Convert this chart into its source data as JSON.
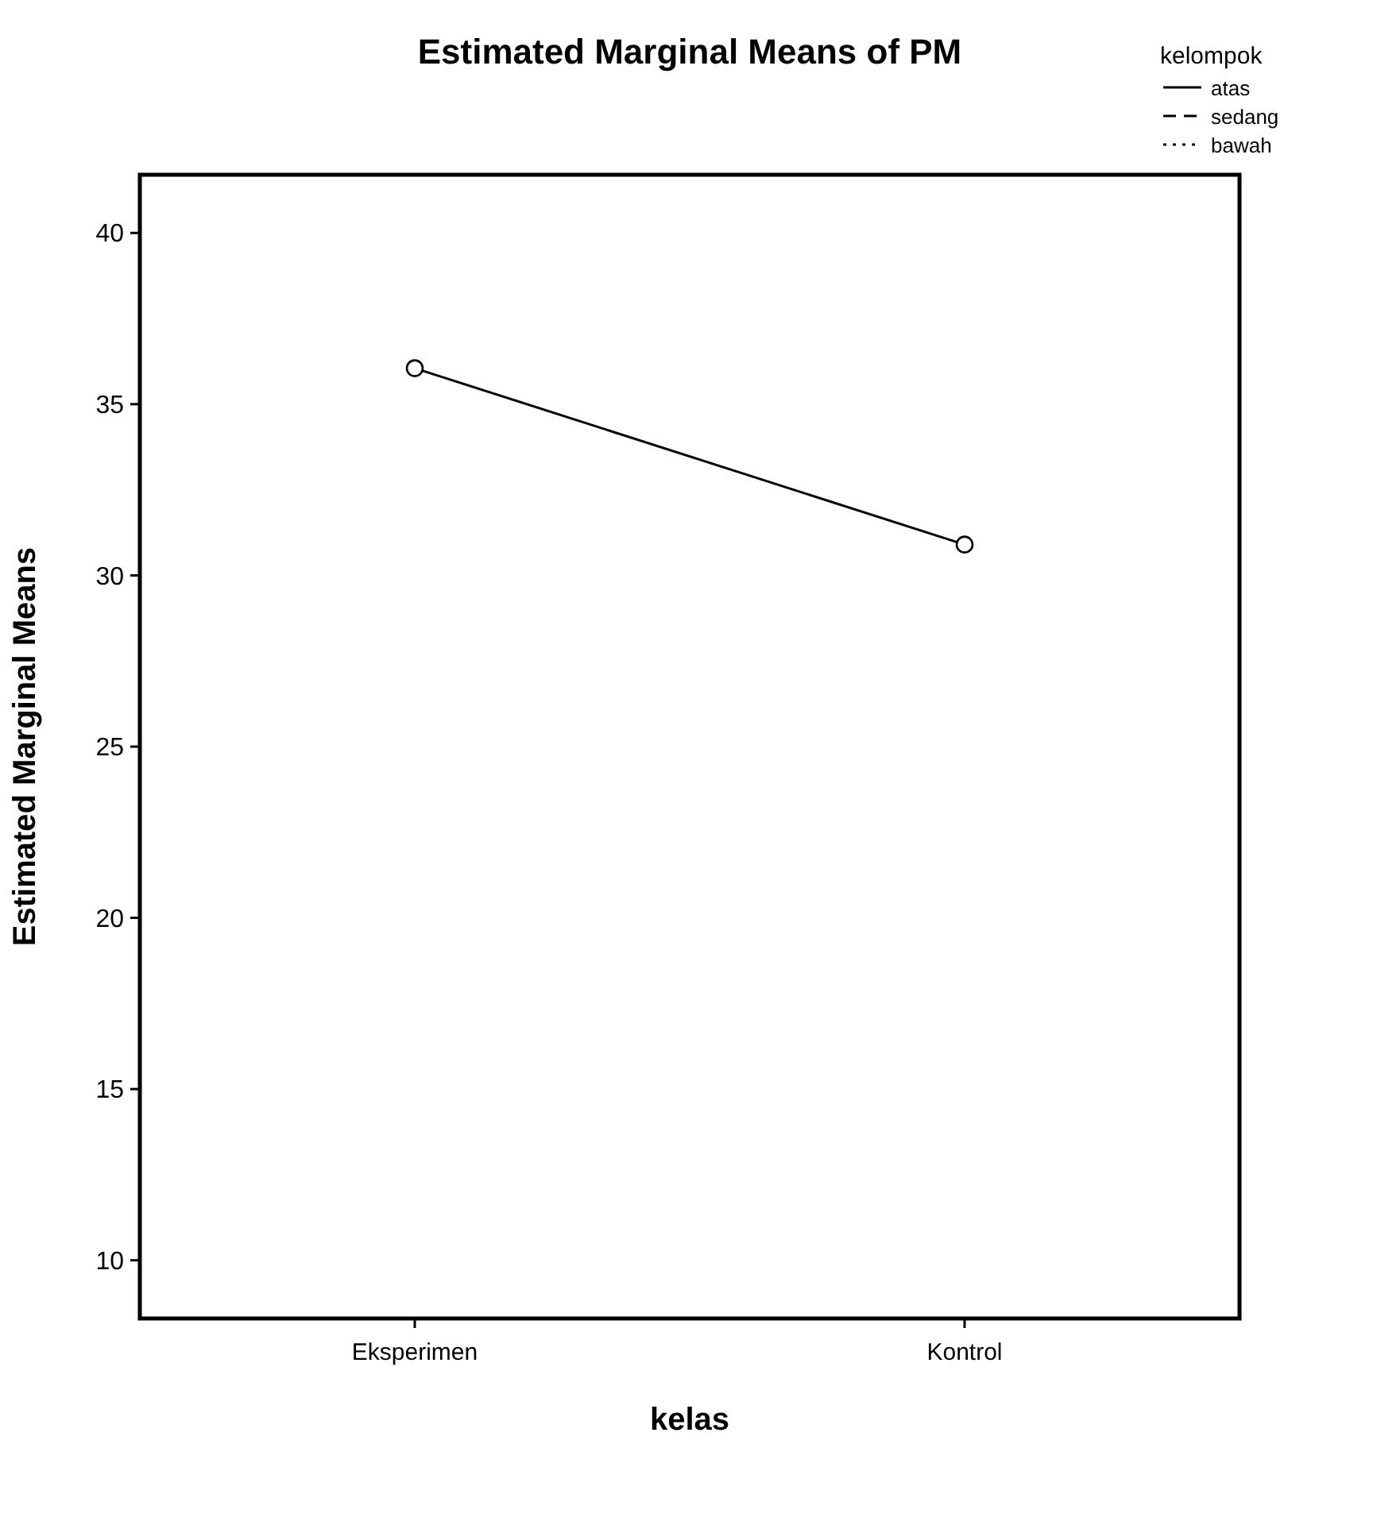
{
  "chart_data": {
    "type": "line",
    "title": "Estimated Marginal Means of PM",
    "xlabel": "kelas",
    "ylabel": "Estimated Marginal Means",
    "legend_title": "kelompok",
    "categories": [
      "Eksperimen",
      "Kontrol"
    ],
    "series": [
      {
        "name": "atas",
        "color": "#000000",
        "values": [
          36.05,
          30.9
        ]
      },
      {
        "name": "sedang",
        "color": "#000000",
        "values": [
          null,
          null
        ],
        "line_style": "dashed"
      },
      {
        "name": "bawah",
        "color": "#000000",
        "values": [
          null,
          null
        ],
        "line_style": "dotted"
      }
    ],
    "ylim": [
      8.3,
      41.7
    ],
    "yticks": [
      10,
      15,
      20,
      25,
      30,
      35,
      40
    ],
    "grid": false,
    "legend": "top right",
    "marker": "circle",
    "line_style": "solid"
  }
}
